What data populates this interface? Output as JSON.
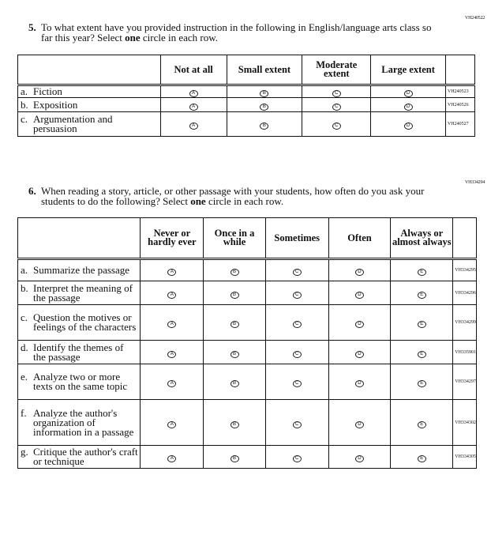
{
  "q5": {
    "code": "VH240522",
    "number": "5.",
    "text_before": "To what extent have you provided instruction in the following in English/language arts class so far this year? Select ",
    "emph": "one",
    "text_after": " circle in each row.",
    "columns": [
      "Not at all",
      "Small extent",
      "Moderate extent",
      "Large extent"
    ],
    "bubbles": [
      "A",
      "B",
      "C",
      "D"
    ],
    "rows": [
      {
        "letter": "a.",
        "label": "Fiction",
        "code": "VH240523"
      },
      {
        "letter": "b.",
        "label": "Exposition",
        "code": "VH240526"
      },
      {
        "letter": "c.",
        "label": "Argumentation and persuasion",
        "code": "VH240527"
      }
    ]
  },
  "q6": {
    "code": "VH334294",
    "number": "6.",
    "text_before": "When reading a story, article, or other passage with your students, how often do you ask your students to do the following? Select ",
    "emph": "one",
    "text_after": " circle in each row.",
    "columns": [
      "Never or hardly ever",
      "Once in a while",
      "Sometimes",
      "Often",
      "Always or almost always"
    ],
    "bubbles": [
      "A",
      "B",
      "C",
      "D",
      "E"
    ],
    "rows": [
      {
        "letter": "a.",
        "label": "Summarize the passage",
        "code": "VH334295"
      },
      {
        "letter": "b.",
        "label": "Interpret the meaning of the passage",
        "code": "VH334296"
      },
      {
        "letter": "c.",
        "label": "Question the motives or feelings of the characters",
        "code": "VH334299"
      },
      {
        "letter": "d.",
        "label": "Identify the themes of the passage",
        "code": "VH335901"
      },
      {
        "letter": "e.",
        "label": "Analyze two or more texts on the same topic",
        "code": "VH334297"
      },
      {
        "letter": "f.",
        "label": "Analyze the author's organization of information in a passage",
        "code": "VH334302"
      },
      {
        "letter": "g.",
        "label": "Critique the author's craft or technique",
        "code": "VH334305"
      }
    ]
  }
}
